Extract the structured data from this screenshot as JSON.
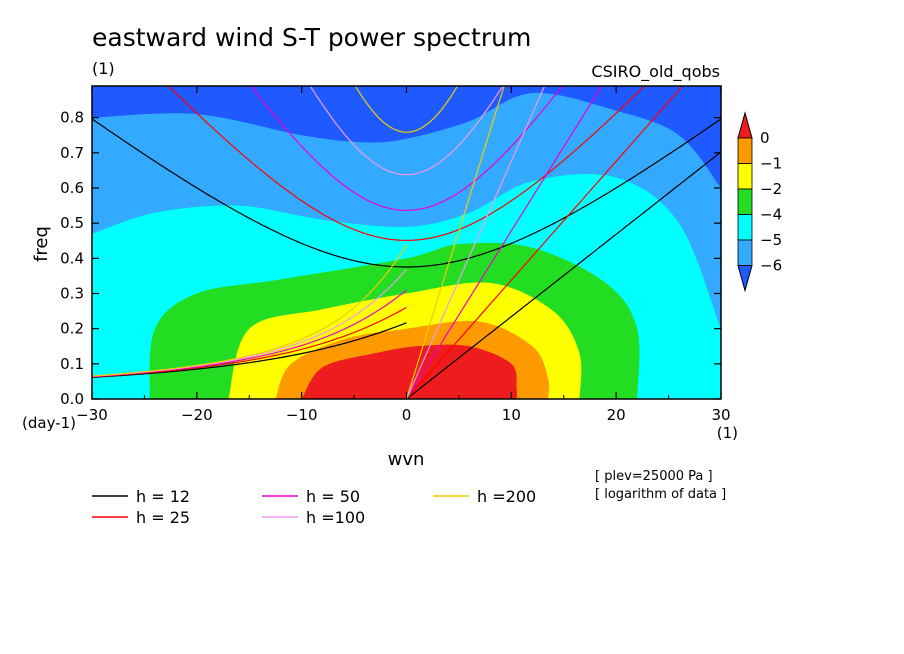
{
  "title": "eastward wind S-T power spectrum",
  "subtitle_left": "(1)",
  "subtitle_right": "CSIRO_old_qobs",
  "notes": [
    "[ plev=25000 Pa ]",
    "[ logarithm of data ]"
  ],
  "x_unit_label": "(1)",
  "y_unit_label": "(day-1)",
  "chart_data": {
    "type": "heatmap",
    "title": "eastward wind S-T power spectrum",
    "xlabel": "wvn",
    "ylabel": "freq",
    "xlim": [
      -30,
      30
    ],
    "ylim": [
      0,
      0.89
    ],
    "x_ticks": [
      -30,
      -20,
      -10,
      0,
      10,
      20,
      30
    ],
    "y_ticks": [
      0.0,
      0.1,
      0.2,
      0.3,
      0.4,
      0.5,
      0.6,
      0.7,
      0.8
    ],
    "x_tick_labels": [
      "-30",
      "-20",
      "-10",
      "0",
      "10",
      "20",
      "30"
    ],
    "y_tick_labels": [
      "0.0",
      "0.1",
      "0.2",
      "0.3",
      "0.4",
      "0.5",
      "0.6",
      "0.7",
      "0.8"
    ],
    "colorbar": {
      "labels": [
        "0",
        "-1",
        "-2",
        "-4",
        "-5",
        "-6"
      ],
      "colors": [
        "#ee1c1c",
        "#ff9900",
        "#ffff00",
        "#22dd22",
        "#00ffff",
        "#33aaff",
        "#1e5aff"
      ]
    },
    "contour_regions": [
      {
        "level": "< -6",
        "color": "#1e5aff",
        "desc": "high frequency (f > ~0.75 centre, ~0.8 edges)"
      },
      {
        "level": "-6 to -5",
        "color": "#33aaff",
        "desc": "band 0.47-0.8"
      },
      {
        "level": "-5 to -4",
        "color": "#00ffff",
        "desc": "background"
      },
      {
        "level": "-4 to -2",
        "color": "#22dd22",
        "boundary": [
          [
            -24.5,
            0
          ],
          [
            -24,
            0.2
          ],
          [
            -20,
            0.3
          ],
          [
            -12,
            0.34
          ],
          [
            0,
            0.4
          ],
          [
            5,
            0.44
          ],
          [
            12,
            0.43
          ],
          [
            19,
            0.33
          ],
          [
            22,
            0.2
          ],
          [
            22,
            0
          ]
        ]
      },
      {
        "level": "-2 to -1",
        "color": "#ffff00",
        "boundary": [
          [
            -17,
            0
          ],
          [
            -15,
            0.2
          ],
          [
            -8,
            0.255
          ],
          [
            0,
            0.3
          ],
          [
            8,
            0.33
          ],
          [
            14,
            0.25
          ],
          [
            16.5,
            0.13
          ],
          [
            16.5,
            0
          ]
        ]
      },
      {
        "level": "-1 to 0",
        "color": "#ff9900",
        "boundary": [
          [
            -12.5,
            0
          ],
          [
            -11,
            0.1
          ],
          [
            -6,
            0.17
          ],
          [
            0,
            0.2
          ],
          [
            7,
            0.22
          ],
          [
            12,
            0.15
          ],
          [
            13.5,
            0.06
          ],
          [
            13.5,
            0
          ]
        ]
      },
      {
        "level": "> 0",
        "color": "#ee1c1c",
        "boundary": [
          [
            -10,
            0
          ],
          [
            -8,
            0.09
          ],
          [
            -3,
            0.13
          ],
          [
            1,
            0.15
          ],
          [
            6,
            0.15
          ],
          [
            10,
            0.1
          ],
          [
            10.5,
            0.03
          ],
          [
            10.5,
            0
          ]
        ]
      }
    ],
    "dispersion_curves": [
      {
        "name": "h = 12",
        "color": "#000000",
        "h": 12
      },
      {
        "name": "h = 25",
        "color": "#ff0000",
        "h": 25
      },
      {
        "name": "h = 50",
        "color": "#ee00cc",
        "h": 50
      },
      {
        "name": "h =100",
        "color": "#ee99ee",
        "h": 100
      },
      {
        "name": "h =200",
        "color": "#eecc00",
        "h": 200
      }
    ]
  }
}
